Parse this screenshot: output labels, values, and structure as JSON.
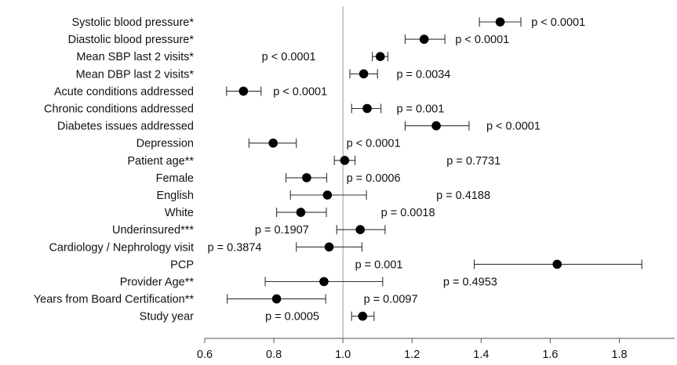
{
  "chart_data": {
    "type": "forest",
    "title": "",
    "xlabel": "",
    "ylabel": "",
    "xlim": [
      0.6,
      1.96
    ],
    "xticks": [
      "0.6",
      "0.8",
      "1.0",
      "1.2",
      "1.4",
      "1.6",
      "1.8"
    ],
    "xtick_values": [
      0.6,
      0.8,
      1.0,
      1.2,
      1.4,
      1.6,
      1.8
    ],
    "reference_line": 1.0,
    "grid": false,
    "rows": [
      {
        "label": "Systolic blood pressure*",
        "estimate": 1.455,
        "ci_low": 1.395,
        "ci_high": 1.515,
        "p_text": "p < 0.0001",
        "p_x": 1.545
      },
      {
        "label": "Diastolic blood pressure*",
        "estimate": 1.235,
        "ci_low": 1.18,
        "ci_high": 1.295,
        "p_text": "p < 0.0001",
        "p_x": 1.325
      },
      {
        "label": "Mean SBP last 2 visits*",
        "estimate": 1.108,
        "ci_low": 1.085,
        "ci_high": 1.13,
        "p_text": "p < 0.0001",
        "p_x": 0.765
      },
      {
        "label": "Mean DBP last 2 visits*",
        "estimate": 1.06,
        "ci_low": 1.02,
        "ci_high": 1.1,
        "p_text": "p = 0.0034",
        "p_x": 1.155
      },
      {
        "label": "Acute conditions addressed",
        "estimate": 0.712,
        "ci_low": 0.663,
        "ci_high": 0.763,
        "p_text": "p < 0.0001",
        "p_x": 0.798
      },
      {
        "label": "Chronic conditions addressed",
        "estimate": 1.07,
        "ci_low": 1.025,
        "ci_high": 1.11,
        "p_text": "p = 0.001",
        "p_x": 1.155
      },
      {
        "label": "Diabetes issues addressed",
        "estimate": 1.27,
        "ci_low": 1.18,
        "ci_high": 1.365,
        "p_text": "p < 0.0001",
        "p_x": 1.415
      },
      {
        "label": "Depression",
        "estimate": 0.798,
        "ci_low": 0.728,
        "ci_high": 0.865,
        "p_text": "p < 0.0001",
        "p_x": 1.01
      },
      {
        "label": "Patient age**",
        "estimate": 1.005,
        "ci_low": 0.975,
        "ci_high": 1.035,
        "p_text": "p = 0.7731",
        "p_x": 1.3
      },
      {
        "label": "Female",
        "estimate": 0.895,
        "ci_low": 0.835,
        "ci_high": 0.953,
        "p_text": "p = 0.0006",
        "p_x": 1.01
      },
      {
        "label": "English",
        "estimate": 0.955,
        "ci_low": 0.848,
        "ci_high": 1.068,
        "p_text": "p = 0.4188",
        "p_x": 1.27
      },
      {
        "label": "White",
        "estimate": 0.878,
        "ci_low": 0.808,
        "ci_high": 0.952,
        "p_text": "p = 0.0018",
        "p_x": 1.11
      },
      {
        "label": "Underinsured***",
        "estimate": 1.05,
        "ci_low": 0.982,
        "ci_high": 1.122,
        "p_text": "p = 0.1907",
        "p_x": 0.745
      },
      {
        "label": "Cardiology / Nephrology visit",
        "estimate": 0.96,
        "ci_low": 0.865,
        "ci_high": 1.055,
        "p_text": "p = 0.3874",
        "p_x": 0.608
      },
      {
        "label": "PCP",
        "estimate": 1.62,
        "ci_low": 1.38,
        "ci_high": 1.865,
        "p_text": "p = 0.001",
        "p_x": 1.035
      },
      {
        "label": "Provider Age**",
        "estimate": 0.945,
        "ci_low": 0.775,
        "ci_high": 1.115,
        "p_text": "p = 0.4953",
        "p_x": 1.29
      },
      {
        "label": "Years from Board Certification**",
        "estimate": 0.808,
        "ci_low": 0.665,
        "ci_high": 0.95,
        "p_text": "p = 0.0097",
        "p_x": 1.06
      },
      {
        "label": "Study year",
        "estimate": 1.057,
        "ci_low": 1.025,
        "ci_high": 1.09,
        "p_text": "p = 0.0005",
        "p_x": 0.775
      }
    ]
  }
}
